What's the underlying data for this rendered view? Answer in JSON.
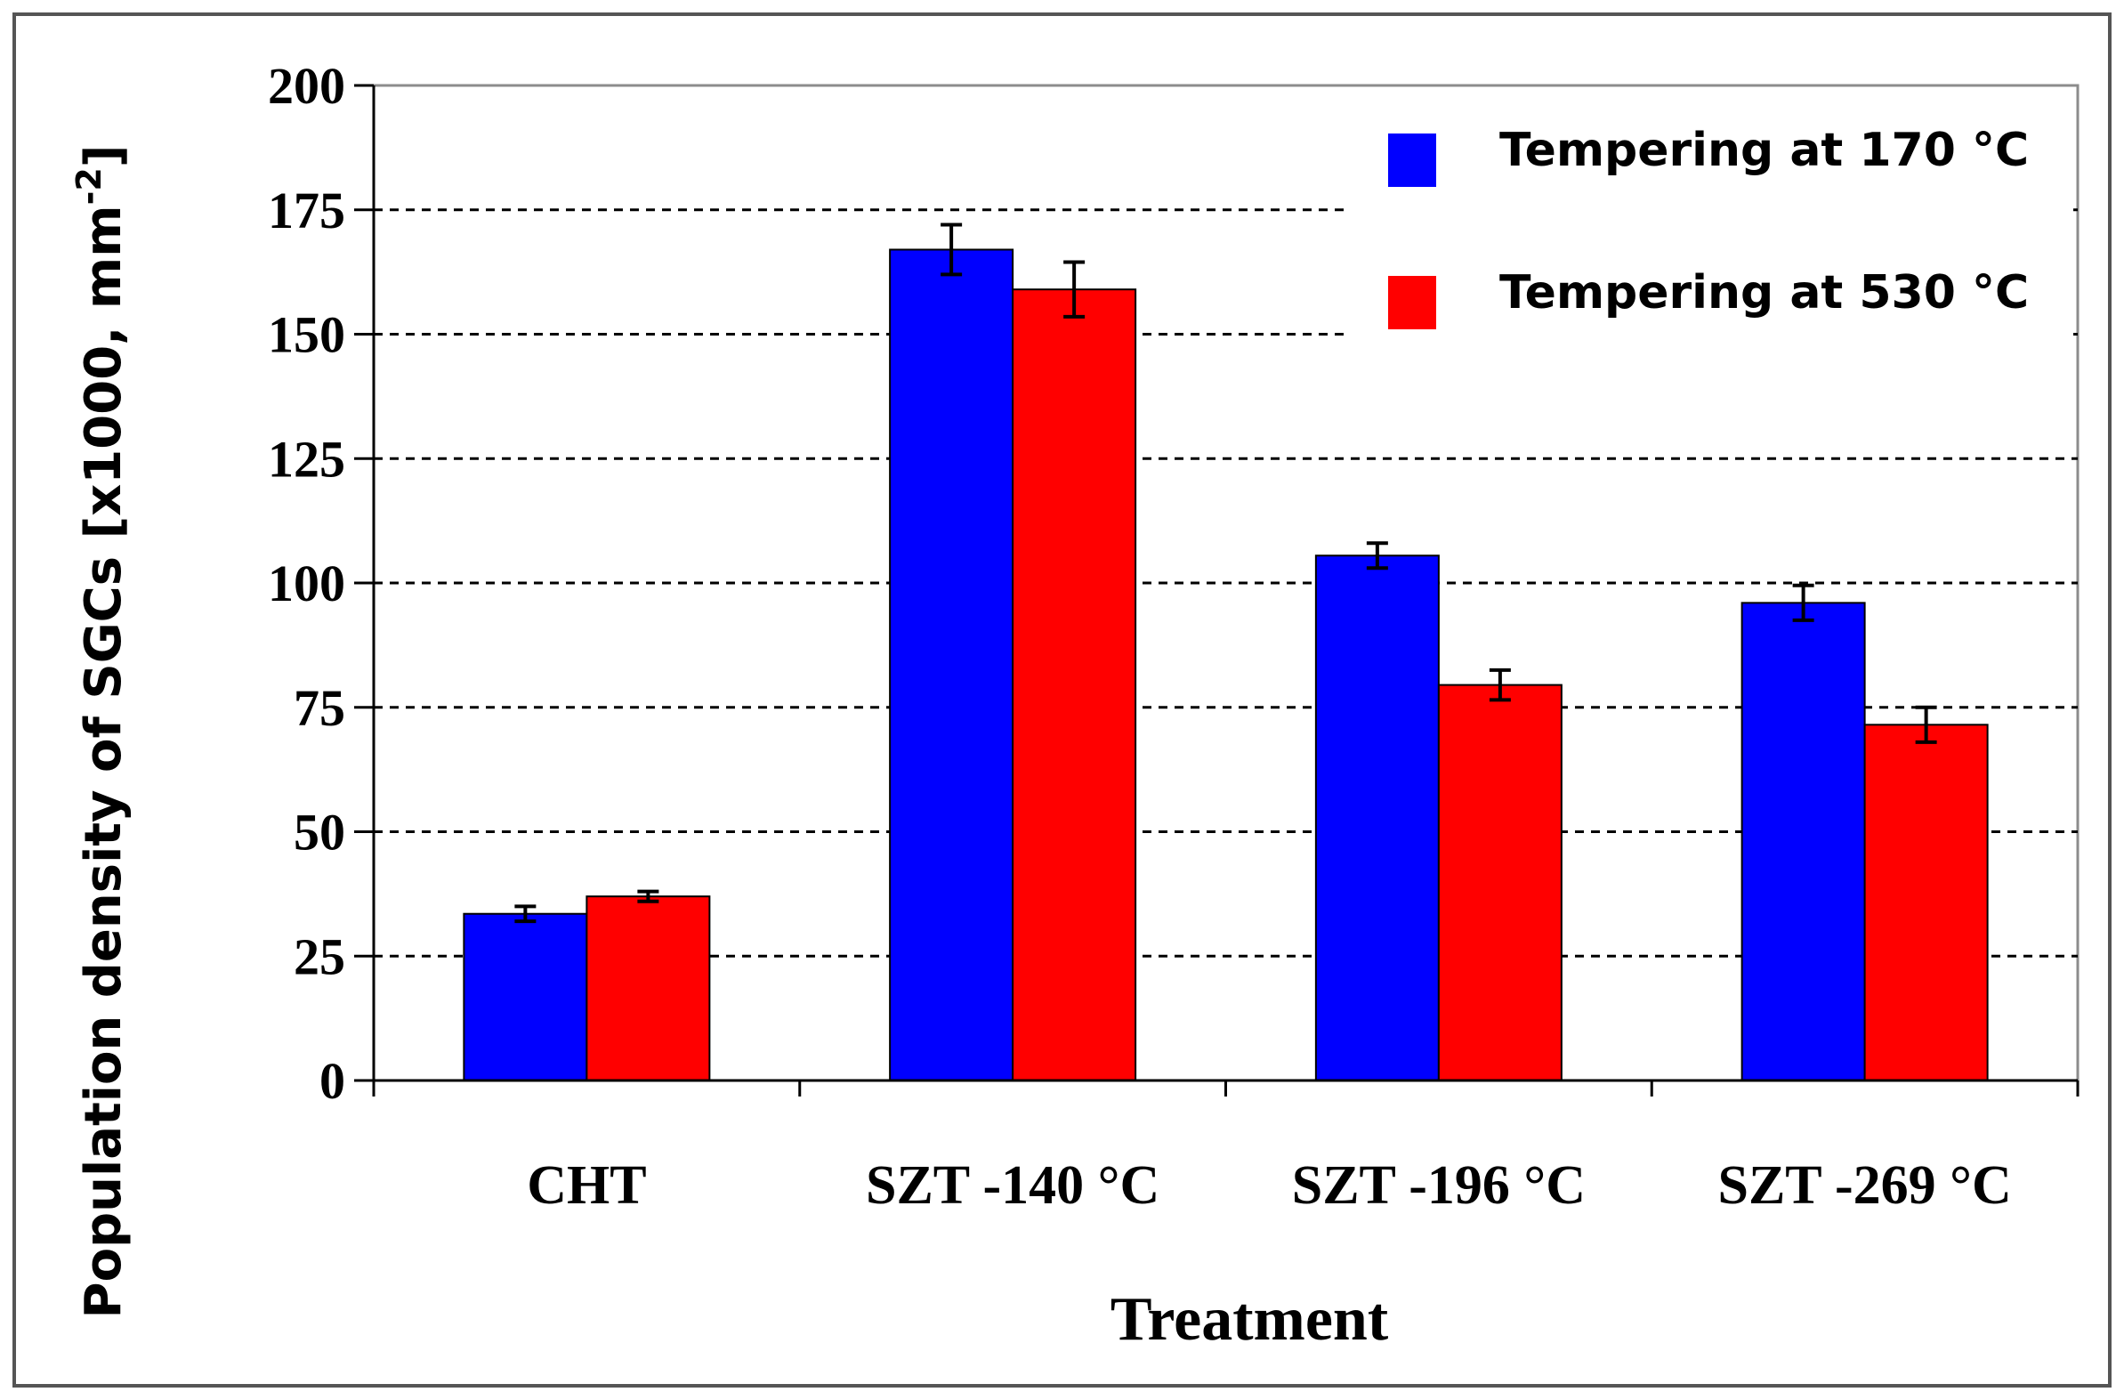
{
  "chart_data": {
    "type": "bar",
    "xlabel": "Treatment",
    "ylabel_main": "Population  density of SGCs [x1000, mm",
    "ylabel_sup": "-2",
    "ylabel_end": "]",
    "ylim": [
      0,
      200
    ],
    "yticks": [
      0,
      25,
      50,
      75,
      100,
      125,
      150,
      175,
      200
    ],
    "grid": "horizontal dashed",
    "legend_position": "top-right",
    "categories": [
      "CHT",
      "SZT -140 °C",
      "SZT -196 °C",
      "SZT -269 °C"
    ],
    "series": [
      {
        "name": "Tempering at 170 °C",
        "color": "#0000ff",
        "values": [
          33.5,
          167,
          105.5,
          96
        ],
        "errors": [
          1.5,
          5,
          2.5,
          3.5
        ]
      },
      {
        "name": "Tempering at 530 °C",
        "color": "#ff0000",
        "values": [
          37,
          159,
          79.5,
          71.5
        ],
        "errors": [
          1,
          5.5,
          3,
          3.5
        ]
      }
    ]
  }
}
